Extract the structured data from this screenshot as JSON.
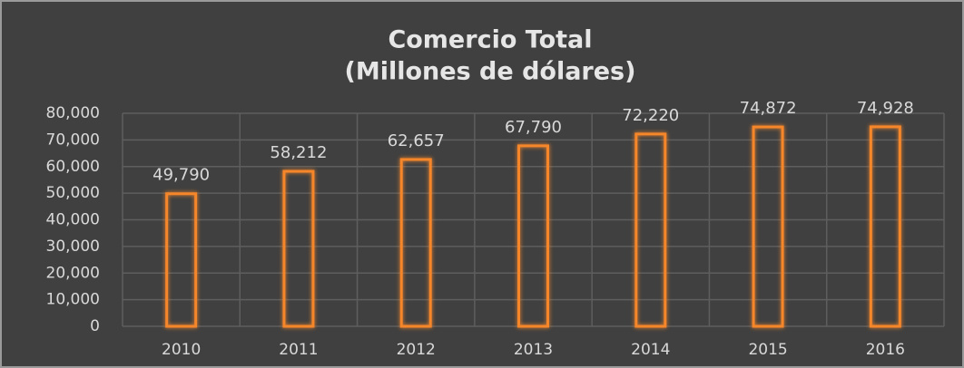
{
  "chart_data": {
    "type": "bar",
    "title": "Comercio Total",
    "subtitle": "(Millones de dólares)",
    "categories": [
      "2010",
      "2011",
      "2012",
      "2013",
      "2014",
      "2015",
      "2016"
    ],
    "values": [
      49790,
      58212,
      62657,
      67790,
      72220,
      74872,
      74928
    ],
    "value_labels": [
      "49,790",
      "58,212",
      "62,657",
      "67,790",
      "72,220",
      "74,872",
      "74,928"
    ],
    "color": "#f5862a",
    "ylim": [
      0,
      80000
    ],
    "yticks": [
      0,
      {
        "value": 10000,
        "label": "10,000"
      },
      {
        "value": 20000,
        "label": "20,000"
      },
      {
        "value": 30000,
        "label": "30,000"
      },
      {
        "value": 40000,
        "label": "40,000"
      },
      {
        "value": 50000,
        "label": "50,000"
      },
      {
        "value": 60000,
        "label": "60,000"
      },
      {
        "value": 70000,
        "label": "70,000"
      },
      {
        "value": 80000,
        "label": "80,000"
      }
    ],
    "grid": true
  }
}
